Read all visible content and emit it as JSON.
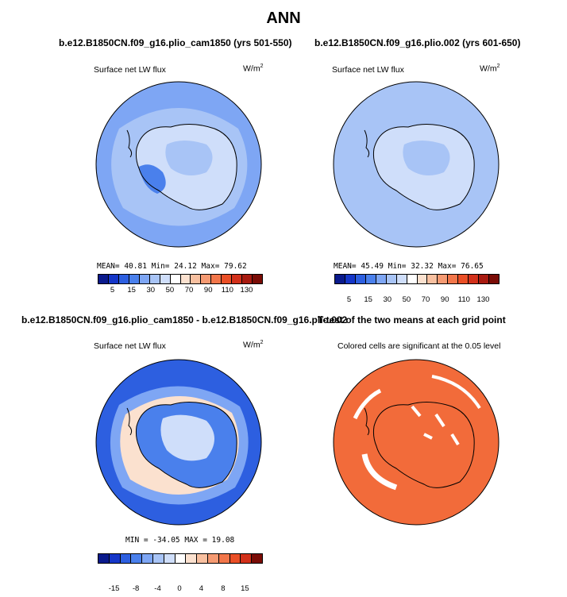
{
  "title": "ANN",
  "panels": [
    {
      "case_title": "b.e12.B1850CN.f09_g16.plio_cam1850 (yrs 501-550)",
      "variable": "Surface net LW flux",
      "units": "W/m",
      "units_sup": "2",
      "stats": "MEAN=  40.81  Min=  24.12  Max=  79.62",
      "colorbar_labels": [
        "5",
        "15",
        "30",
        "50",
        "70",
        "90",
        "110",
        "130"
      ],
      "fill": "#a8c4f2"
    },
    {
      "case_title": "b.e12.B1850CN.f09_g16.plio.002 (yrs 601-650)",
      "variable": "Surface net LW flux",
      "units": "W/m",
      "units_sup": "2",
      "stats": "MEAN=  45.49  Min=  32.32  Max=  76.65",
      "colorbar_labels": [
        "5",
        "15",
        "30",
        "50",
        "70",
        "90",
        "110",
        "130"
      ],
      "fill": "#b4cdf4"
    },
    {
      "case_title": "b.e12.B1850CN.f09_g16.plio_cam1850 - b.e12.B1850CN.f09_g16.plio.002",
      "variable": "Surface net LW flux",
      "units": "W/m",
      "units_sup": "2",
      "stats": "MIN = -34.05  MAX =  19.08",
      "colorbar_labels": [
        "-15",
        "-8",
        "-4",
        "0",
        "4",
        "8",
        "15"
      ],
      "fill": "#2f6ee0"
    },
    {
      "case_title": "T-test of the two means at each grid point",
      "subtitle": "Colored cells are significant at the 0.05 level",
      "fill": "#f26b3a"
    }
  ],
  "colors": {
    "colorbar_full": [
      "#0a1a8c",
      "#1536c8",
      "#2d5fe0",
      "#4a80ec",
      "#7ea6f4",
      "#a8c4f6",
      "#cfdefa",
      "#ffffff",
      "#fbe1cf",
      "#f8c0a0",
      "#f59a72",
      "#f2764a",
      "#ea4f26",
      "#d2301a",
      "#a81a10",
      "#7a0c06"
    ],
    "colorbar_diff": [
      "#0a1a8c",
      "#1536c8",
      "#2d5fe0",
      "#4a80ec",
      "#7ea6f4",
      "#a8c4f6",
      "#cfdefa",
      "#ffffff",
      "#fbe1cf",
      "#f8c0a0",
      "#f59a72",
      "#f2764a",
      "#ea4f26",
      "#d2301a",
      "#7a0c06"
    ],
    "ocean_ring": "#c8dafa",
    "ice_light": "#dbe7fb",
    "significance_color": "#f26b3a"
  },
  "chart_data": [
    {
      "type": "heatmap",
      "projection": "south polar stereographic",
      "title": "b.e12.B1850CN.f09_g16.plio_cam1850 (yrs 501-550)",
      "variable": "Surface net LW flux",
      "units": "W/m2",
      "mean": 40.81,
      "min": 24.12,
      "max": 79.62,
      "colorbar_levels": [
        5,
        10,
        15,
        20,
        30,
        40,
        50,
        60,
        70,
        80,
        90,
        100,
        110,
        120,
        130
      ],
      "colorbar_labels": [
        5,
        15,
        30,
        50,
        70,
        90,
        110,
        130
      ]
    },
    {
      "type": "heatmap",
      "projection": "south polar stereographic",
      "title": "b.e12.B1850CN.f09_g16.plio.002 (yrs 601-650)",
      "variable": "Surface net LW flux",
      "units": "W/m2",
      "mean": 45.49,
      "min": 32.32,
      "max": 76.65,
      "colorbar_levels": [
        5,
        10,
        15,
        20,
        30,
        40,
        50,
        60,
        70,
        80,
        90,
        100,
        110,
        120,
        130
      ],
      "colorbar_labels": [
        5,
        15,
        30,
        50,
        70,
        90,
        110,
        130
      ]
    },
    {
      "type": "heatmap",
      "projection": "south polar stereographic",
      "title": "b.e12.B1850CN.f09_g16.plio_cam1850 - b.e12.B1850CN.f09_g16.plio.002",
      "variable": "Surface net LW flux",
      "units": "W/m2",
      "min": -34.05,
      "max": 19.08,
      "colorbar_labels": [
        -15,
        -8,
        -4,
        0,
        4,
        8,
        15
      ]
    },
    {
      "type": "heatmap",
      "projection": "south polar stereographic",
      "title": "T-test of the two means at each grid point",
      "subtitle": "Colored cells are significant at the 0.05 level"
    }
  ]
}
